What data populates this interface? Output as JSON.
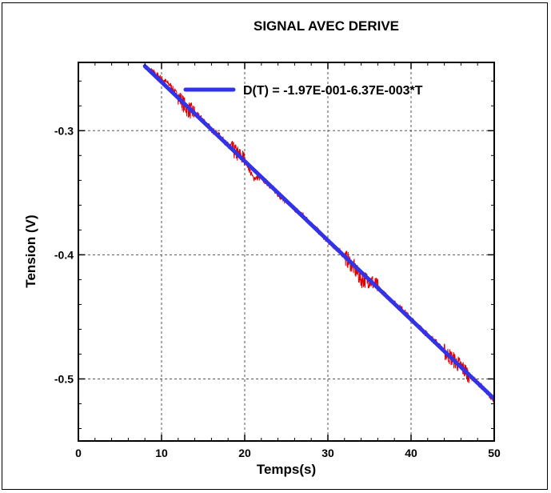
{
  "chart_data": {
    "type": "line",
    "title": "SIGNAL AVEC DERIVE",
    "xlabel": "Temps(s)",
    "ylabel": "Tension (V)",
    "xlim": [
      0,
      50
    ],
    "ylim": [
      -0.55,
      -0.245
    ],
    "x_ticks": [
      0,
      10,
      20,
      30,
      40,
      50
    ],
    "y_ticks": [
      -0.3,
      -0.4,
      -0.5
    ],
    "x_tick_labels": [
      "0",
      "10",
      "20",
      "30",
      "40",
      "50"
    ],
    "y_tick_labels": [
      "-0.3",
      "-0.4",
      "-0.5"
    ],
    "grid": true,
    "legend_position": "top-right",
    "series": [
      {
        "name": "",
        "color": "#e00000",
        "style": "noisy-signal",
        "x": [
          8,
          9,
          10,
          11,
          12,
          13,
          14,
          15,
          16,
          17,
          18,
          19,
          20,
          21,
          22,
          23,
          24,
          25,
          26,
          27,
          28,
          29,
          30,
          31,
          32,
          33,
          34,
          35,
          36,
          37,
          38,
          39,
          40,
          41,
          42,
          43,
          44,
          45,
          46,
          47,
          48,
          49,
          50
        ],
        "y": [
          -0.248,
          -0.253,
          -0.258,
          -0.263,
          -0.272,
          -0.282,
          -0.286,
          -0.291,
          -0.299,
          -0.304,
          -0.312,
          -0.318,
          -0.323,
          -0.338,
          -0.338,
          -0.344,
          -0.351,
          -0.357,
          -0.363,
          -0.368,
          -0.375,
          -0.382,
          -0.389,
          -0.395,
          -0.401,
          -0.409,
          -0.42,
          -0.42,
          -0.426,
          -0.433,
          -0.439,
          -0.444,
          -0.452,
          -0.458,
          -0.465,
          -0.47,
          -0.478,
          -0.484,
          -0.49,
          -0.497,
          -0.503,
          -0.51,
          -0.517
        ]
      },
      {
        "name": "D(T) = -1.97E-001-6.37E-003*T",
        "color": "#3232e8",
        "style": "fit-line",
        "x": [
          8,
          50
        ],
        "y": [
          -0.248,
          -0.516
        ]
      }
    ]
  }
}
